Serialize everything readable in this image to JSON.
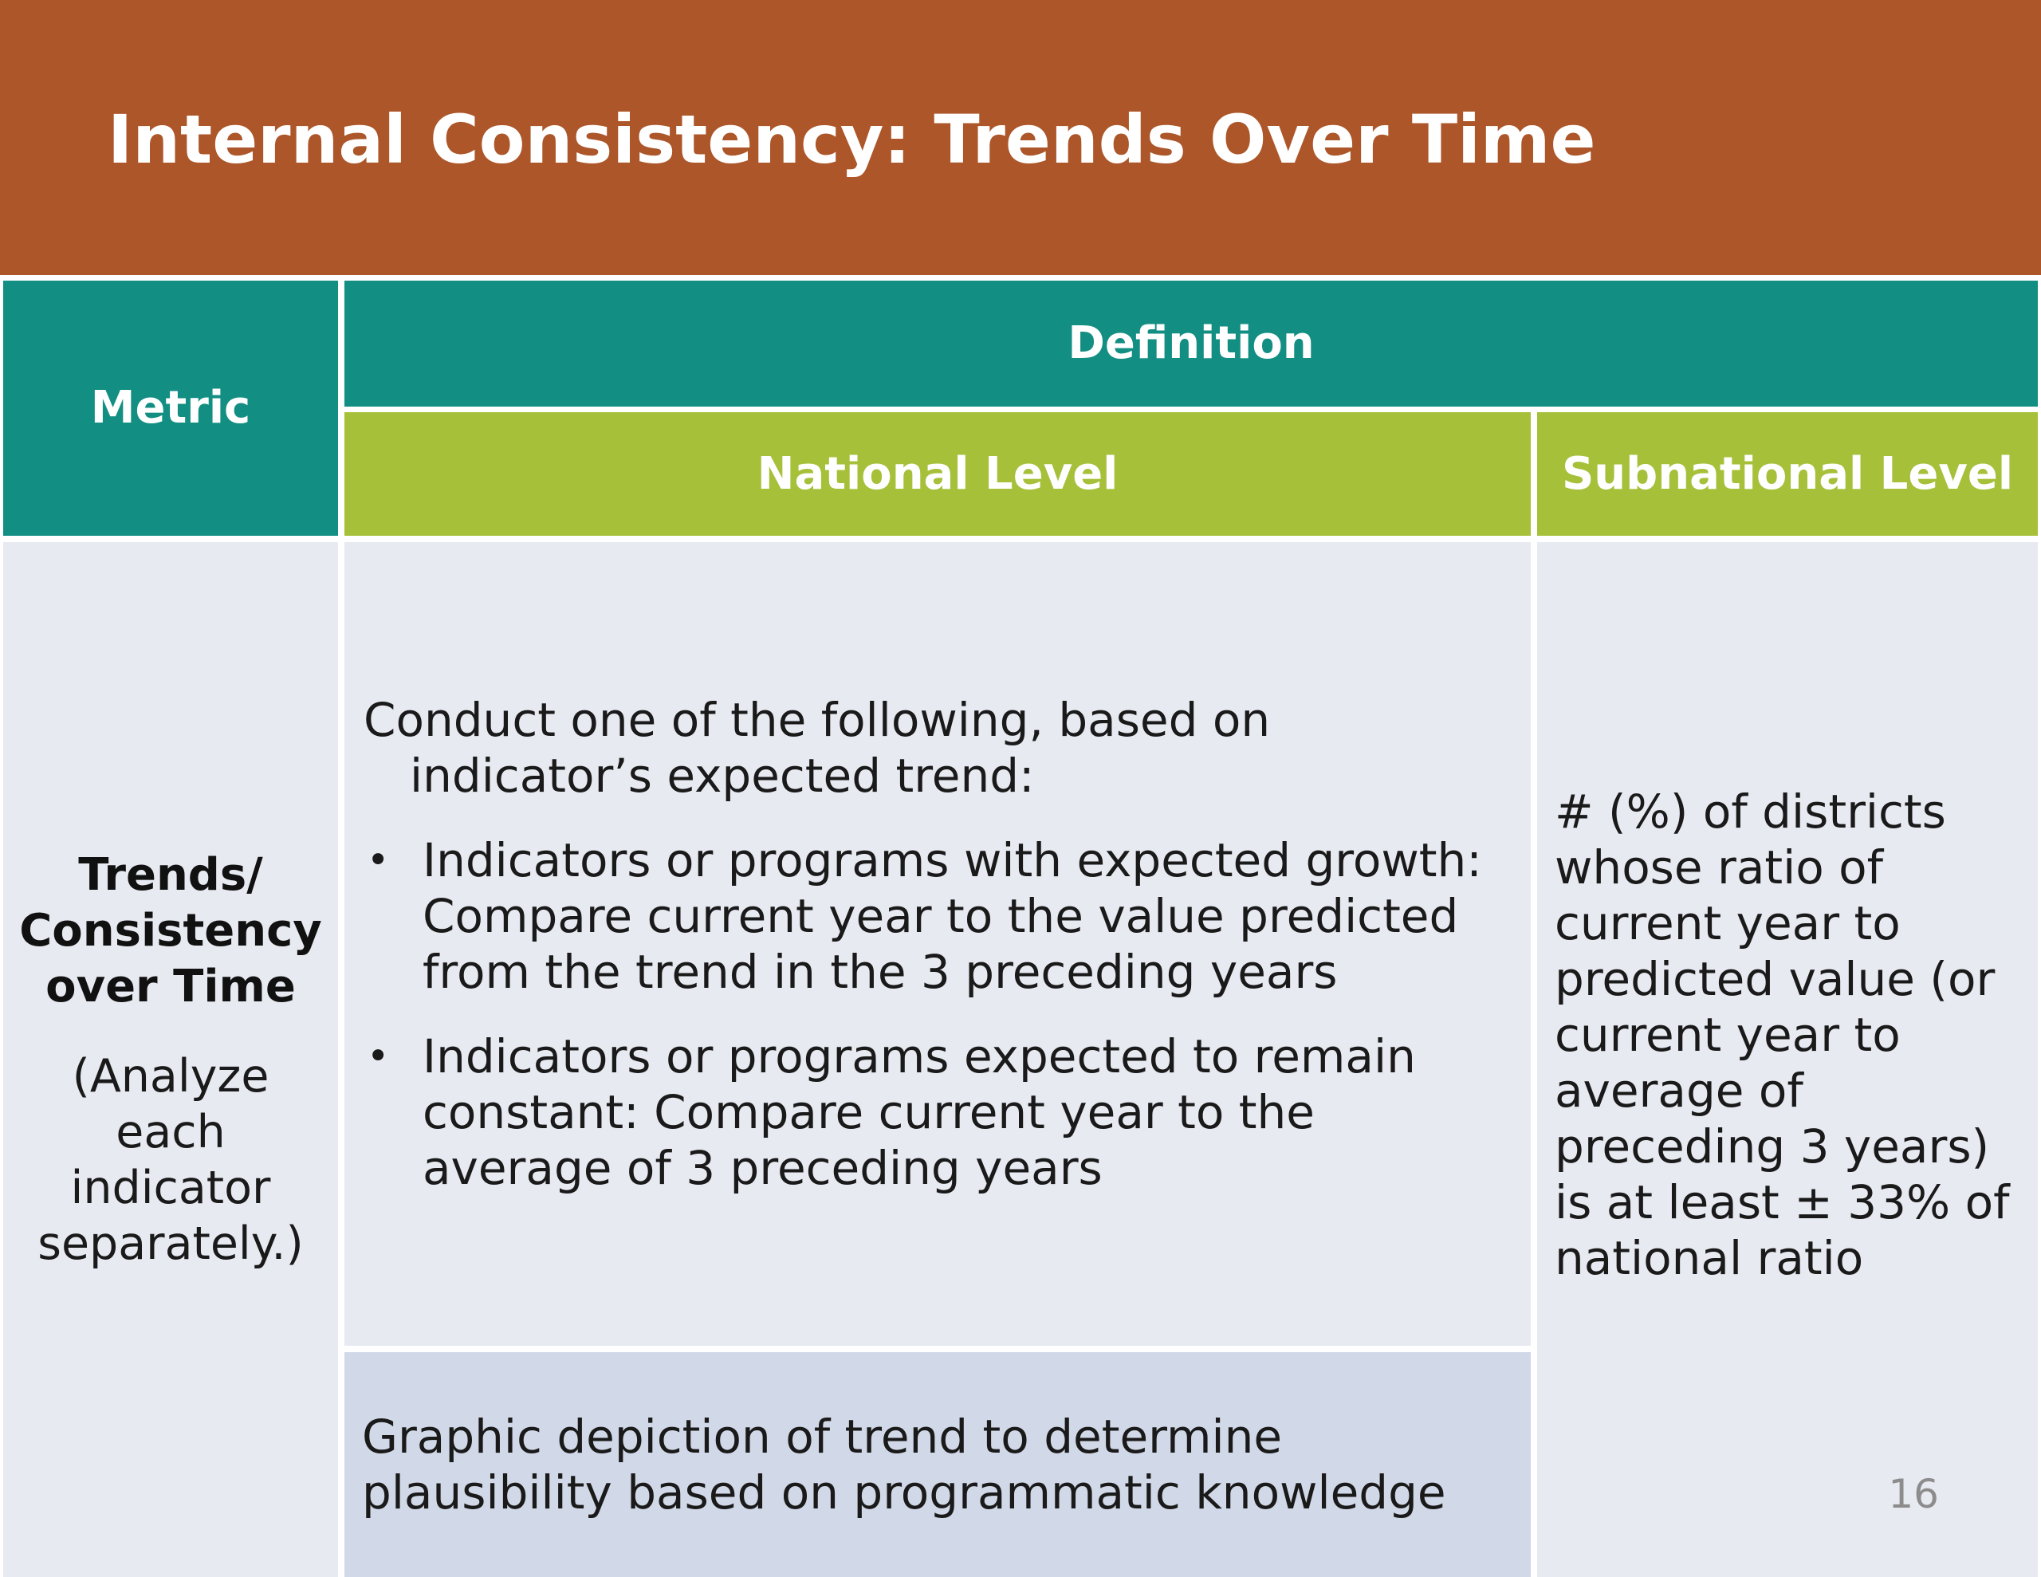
{
  "title": "Internal Consistency: Trends Over Time",
  "table": {
    "header": {
      "metric": "Metric",
      "definition": "Definition",
      "national": "National Level",
      "subnational": "Subnational Level"
    },
    "row": {
      "metric_title_lines": [
        "Trends/",
        "Consistency",
        "over Time"
      ],
      "metric_note_lines": [
        "(Analyze",
        "each",
        "indicator",
        "separately.)"
      ],
      "national_intro": "Conduct one of the following, based on indicator’s expected trend:",
      "national_bullets": [
        "Indicators or programs with expected growth:  Compare current year to the value predicted from the trend in the 3 preceding years",
        "Indicators or programs expected to remain constant:  Compare current year to the average of 3 preceding years"
      ],
      "national_graphic": "Graphic depiction of trend to determine plausibility based on programmatic knowledge",
      "subnational": "# (%) of districts whose ratio of current year to predicted value (or current year to average of preceding 3 years) is at least ± 33% of national ratio"
    }
  },
  "page_number": "16",
  "colors": {
    "title_bar": "#ac5629",
    "teal_header": "#138e83",
    "green_header": "#a6c03a",
    "body_cell": "#e8eaf2",
    "graphic_cell": "#d1d8e7"
  },
  "bullet_glyph": "•"
}
